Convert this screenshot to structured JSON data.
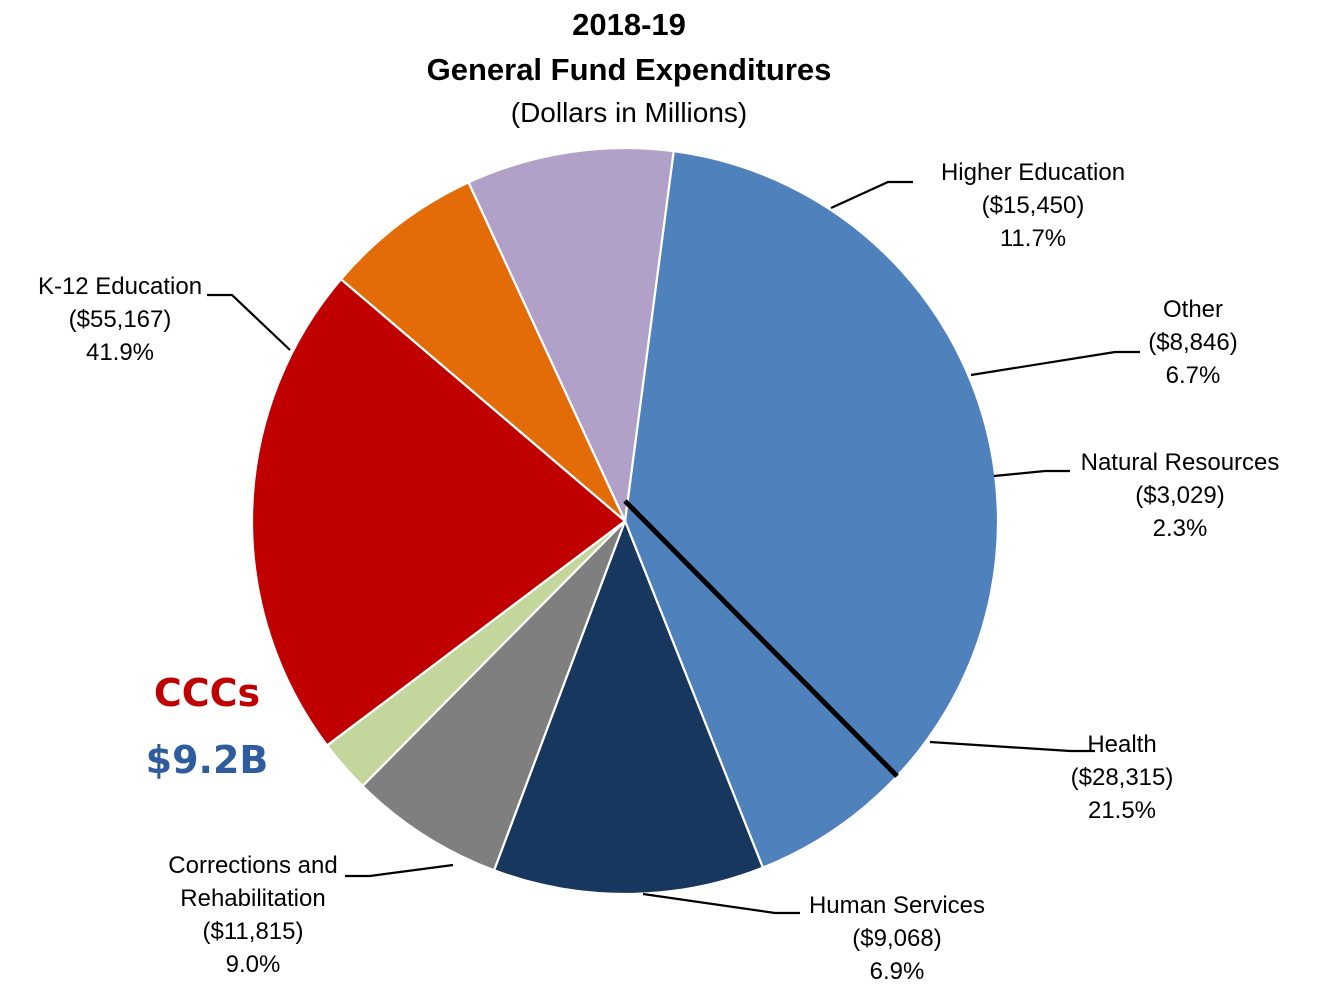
{
  "chart_data": {
    "type": "pie",
    "title": "2018-19",
    "subtitle": "General Fund Expenditures",
    "units_note": "(Dollars in Millions)",
    "slices": [
      {
        "name": "K-12 Education",
        "value": 55167,
        "value_label": "($55,167)",
        "percent": 41.9,
        "percent_label": "41.9%",
        "color": "#4f81bd"
      },
      {
        "name": "Higher Education",
        "value": 15450,
        "value_label": "($15,450)",
        "percent": 11.7,
        "percent_label": "11.7%",
        "color": "#17375e"
      },
      {
        "name": "Other",
        "value": 8846,
        "value_label": "($8,846)",
        "percent": 6.7,
        "percent_label": "6.7%",
        "color": "#7f7f7f"
      },
      {
        "name": "Natural Resources",
        "value": 3029,
        "value_label": "($3,029)",
        "percent": 2.3,
        "percent_label": "2.3%",
        "color": "#c3d69b"
      },
      {
        "name": "Health",
        "value": 28315,
        "value_label": "($28,315)",
        "percent": 21.5,
        "percent_label": "21.5%",
        "color": "#c00000"
      },
      {
        "name": "Human Services",
        "value": 9068,
        "value_label": "($9,068)",
        "percent": 6.9,
        "percent_label": "6.9%",
        "color": "#e36c09"
      },
      {
        "name": "Corrections and Rehabilitation",
        "name_lines": [
          "Corrections and",
          "Rehabilitation"
        ],
        "value": 11815,
        "value_label": "($11,815)",
        "percent": 9.0,
        "percent_label": "9.0%",
        "color": "#b1a0c7"
      }
    ],
    "annotation": {
      "label": "CCCs",
      "value": 9200,
      "value_label": "$9.2B",
      "label_color": "#c00000",
      "value_color": "#2e5c9e",
      "within_slice": "K-12 Education"
    }
  }
}
